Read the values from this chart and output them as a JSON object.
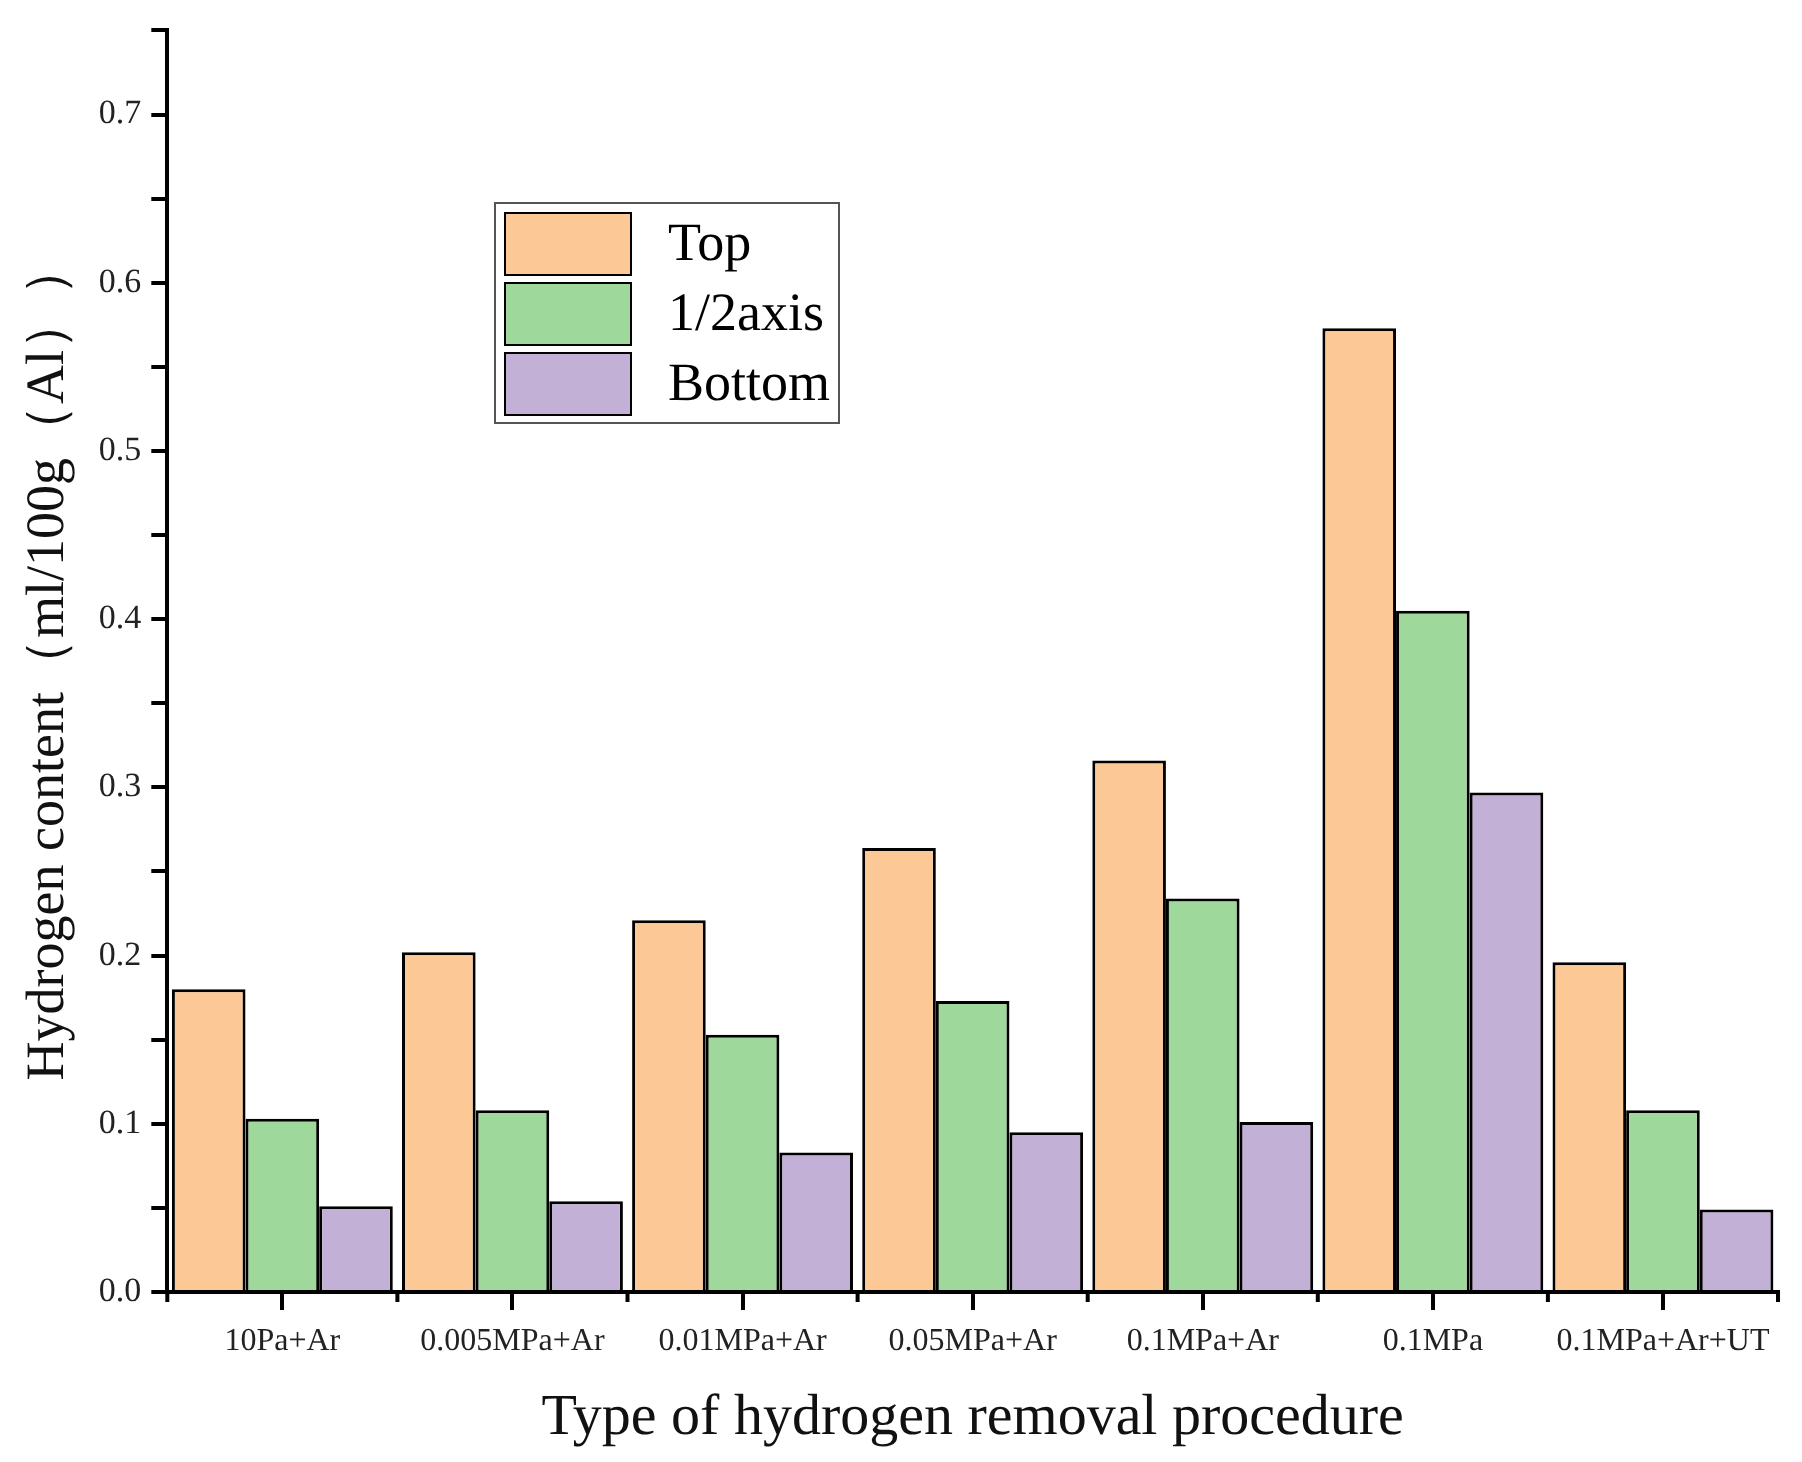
{
  "chart_data": {
    "type": "bar",
    "xlabel": "Type of hydrogen removal procedure",
    "ylabel": "Hydrogen content（ml/100g（Al））",
    "categories": [
      "10Pa+Ar",
      "0.005MPa+Ar",
      "0.01MPa+Ar",
      "0.05MPa+Ar",
      "0.1MPa+Ar",
      "0.1MPa",
      "0.1MPa+Ar+UT"
    ],
    "series": [
      {
        "name": "Top",
        "color": "#fbc896",
        "values": [
          0.18,
          0.202,
          0.221,
          0.264,
          0.316,
          0.573,
          0.196
        ]
      },
      {
        "name": "1/2axis",
        "color": "#9fd89b",
        "values": [
          0.103,
          0.108,
          0.153,
          0.173,
          0.234,
          0.405,
          0.108
        ]
      },
      {
        "name": "Bottom",
        "color": "#c2b0d6",
        "values": [
          0.051,
          0.054,
          0.083,
          0.095,
          0.101,
          0.297,
          0.049
        ]
      }
    ],
    "ylim": [
      0,
      0.75
    ],
    "yticks": [
      {
        "value": 0,
        "label": "0.0"
      },
      {
        "value": 0.05,
        "label": null
      },
      {
        "value": 0.1,
        "label": "0.1"
      },
      {
        "value": 0.15,
        "label": null
      },
      {
        "value": 0.2,
        "label": "0.2"
      },
      {
        "value": 0.25,
        "label": null
      },
      {
        "value": 0.3,
        "label": "0.3"
      },
      {
        "value": 0.35,
        "label": null
      },
      {
        "value": 0.4,
        "label": "0.4"
      },
      {
        "value": 0.45,
        "label": null
      },
      {
        "value": 0.5,
        "label": "0.5"
      },
      {
        "value": 0.55,
        "label": null
      },
      {
        "value": 0.6,
        "label": "0.6"
      },
      {
        "value": 0.65,
        "label": null
      },
      {
        "value": 0.7,
        "label": "0.7"
      },
      {
        "value": 0.75,
        "label": null
      }
    ],
    "grid": false,
    "legend": "top left"
  }
}
